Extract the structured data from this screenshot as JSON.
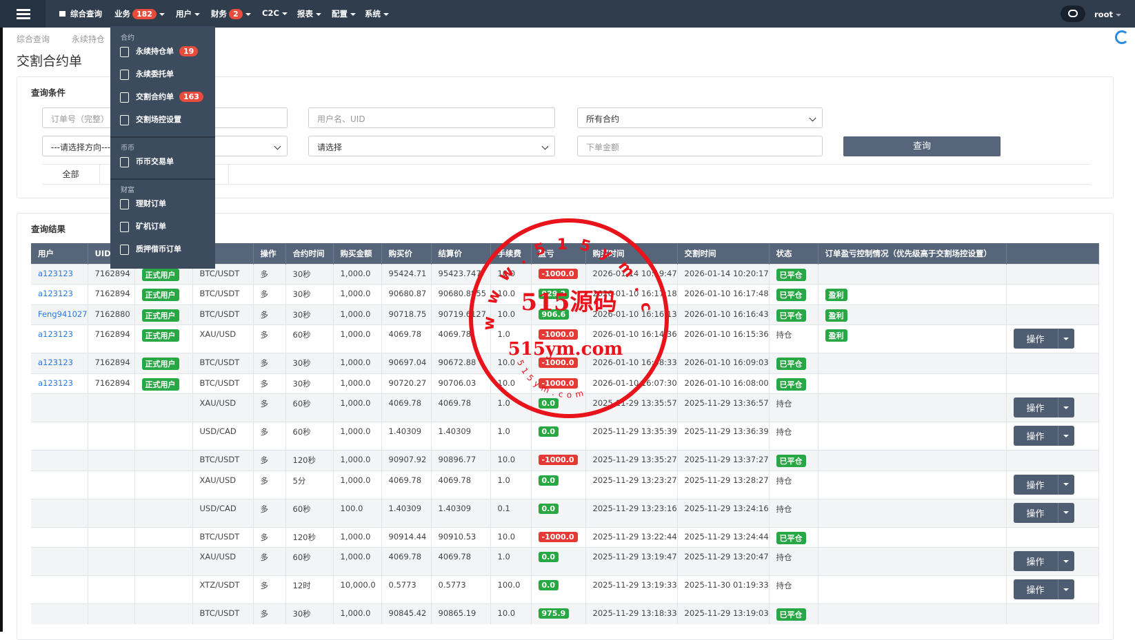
{
  "nav": {
    "items": [
      {
        "label": "综合查询"
      },
      {
        "label": "业务",
        "badge": "182"
      },
      {
        "label": "用户"
      },
      {
        "label": "财务",
        "badge": "2"
      },
      {
        "label": "C2C"
      },
      {
        "label": "报表"
      },
      {
        "label": "配置"
      },
      {
        "label": "系统"
      }
    ],
    "user": "root"
  },
  "dropdown": [
    {
      "section": "合约",
      "items": [
        {
          "label": "永续持仓单",
          "badge": "19"
        },
        {
          "label": "永续委托单"
        },
        {
          "label": "交割合约单",
          "badge": "163"
        },
        {
          "label": "交割场控设置"
        }
      ]
    },
    {
      "section": "币币",
      "items": [
        {
          "label": "币币交易单"
        }
      ]
    },
    {
      "section": "财富",
      "items": [
        {
          "label": "理财订单"
        },
        {
          "label": "矿机订单"
        },
        {
          "label": "质押借币订单"
        }
      ]
    }
  ],
  "breadcrumb": [
    "综合查询",
    "永续持仓"
  ],
  "page_title": "交割合约单",
  "query": {
    "title": "查询条件",
    "fields": [
      "订单号（完整）",
      "用户名、UID",
      "所有合约",
      "---请选择方向---",
      "请选择",
      "下单金额"
    ],
    "button": "查询",
    "tab": "全部"
  },
  "results": {
    "title": "查询结果",
    "headers": [
      "用户",
      "UID",
      null,
      null,
      "操作",
      "合约时间",
      "购买金额",
      "购买价",
      "结算价",
      "手续费",
      "盈亏",
      "购买时间",
      "交割时间",
      "状态",
      "订单盈亏控制情况（优先级高于交割场控设置）",
      null
    ],
    "rows": [
      [
        "a123123",
        "7162894",
        "正式用户",
        "BTC/USDT",
        "多",
        "30秒",
        "1,000.0",
        "95424.71",
        "95423.747",
        "10.0",
        "-1000.0",
        "2026-01-14 10:19:47",
        "2026-01-14 10:20:17",
        "已平仓",
        null,
        null
      ],
      [
        "a123123",
        "7162894",
        "正式用户",
        "BTC/USDT",
        "多",
        "30秒",
        "1,000.0",
        "90680.87",
        "90680.8855",
        "10.0",
        "929.2",
        "2026-01-10 16:17:18",
        "2026-01-10 16:17:48",
        "已平仓",
        "盈利",
        null
      ],
      [
        "Feng941027",
        "7162880",
        "正式用户",
        "BTC/USDT",
        "多",
        "30秒",
        "1,000.0",
        "90718.75",
        "90719.6127",
        "10.0",
        "906.6",
        "2026-01-10 16:16:13",
        "2026-01-10 16:16:43",
        "已平仓",
        "盈利",
        null
      ],
      [
        "a123123",
        "7162894",
        "正式用户",
        "XAU/USD",
        "多",
        "60秒",
        "1,000.0",
        "4069.78",
        "4069.78",
        "1.0",
        "-1000.0",
        "2026-01-10 16:14:36",
        "2026-01-10 16:15:36",
        "持仓",
        "盈利",
        "操作"
      ],
      [
        "a123123",
        "7162894",
        "正式用户",
        "BTC/USDT",
        "多",
        "30秒",
        "1,000.0",
        "90697.04",
        "90672.88",
        "10.0",
        "-1000.0",
        "2026-01-10 16:08:33",
        "2026-01-10 16:09:03",
        "已平仓",
        null,
        null
      ],
      [
        "a123123",
        "7162894",
        "正式用户",
        "BTC/USDT",
        "多",
        "30秒",
        "1,000.0",
        "90720.27",
        "90706.03",
        "10.0",
        "-1000.0",
        "2026-01-10 16:07:30",
        "2026-01-10 16:08:00",
        "已平仓",
        null,
        null
      ],
      [
        null,
        null,
        null,
        "XAU/USD",
        "多",
        "60秒",
        "1,000.0",
        "4069.78",
        "4069.78",
        "1.0",
        "0.0",
        "2025-11-29 13:35:57",
        "2025-11-29 13:36:57",
        "持仓",
        null,
        "操作"
      ],
      [
        null,
        null,
        null,
        "USD/CAD",
        "多",
        "60秒",
        "1,000.0",
        "1.40309",
        "1.40309",
        "1.0",
        "0.0",
        "2025-11-29 13:35:39",
        "2025-11-29 13:36:39",
        "持仓",
        null,
        "操作"
      ],
      [
        null,
        null,
        null,
        "BTC/USDT",
        "多",
        "120秒",
        "1,000.0",
        "90907.92",
        "90896.77",
        "10.0",
        "-1000.0",
        "2025-11-29 13:35:27",
        "2025-11-29 13:37:27",
        "已平仓",
        null,
        null
      ],
      [
        null,
        null,
        null,
        "XAU/USD",
        "多",
        "5分",
        "1,000.0",
        "4069.78",
        "4069.78",
        "1.0",
        "0.0",
        "2025-11-29 13:23:27",
        "2025-11-29 13:28:27",
        "持仓",
        null,
        "操作"
      ],
      [
        null,
        null,
        null,
        "USD/CAD",
        "多",
        "60秒",
        "100.0",
        "1.40309",
        "1.40309",
        "0.1",
        "0.0",
        "2025-11-29 13:23:16",
        "2025-11-29 13:24:16",
        "持仓",
        null,
        "操作"
      ],
      [
        null,
        null,
        null,
        "BTC/USDT",
        "多",
        "120秒",
        "1,000.0",
        "90914.44",
        "90910.53",
        "10.0",
        "-1000.0",
        "2025-11-29 13:22:44",
        "2025-11-29 13:24:44",
        "已平仓",
        null,
        null
      ],
      [
        null,
        null,
        null,
        "XAU/USD",
        "多",
        "60秒",
        "1,000.0",
        "4069.78",
        "4069.78",
        "1.0",
        "0.0",
        "2025-11-29 13:19:47",
        "2025-11-29 13:20:47",
        "持仓",
        null,
        "操作"
      ],
      [
        null,
        null,
        null,
        "XTZ/USDT",
        "多",
        "12时",
        "10,000.0",
        "0.5773",
        "0.5773",
        "100.0",
        "0.0",
        "2025-11-29 13:19:33",
        "2025-11-30 01:19:33",
        "持仓",
        null,
        "操作"
      ],
      [
        null,
        null,
        null,
        "BTC/USDT",
        "多",
        "30秒",
        "1,000.0",
        "90845.42",
        "90865.19",
        "10.0",
        "975.9",
        "2025-11-29 13:18:33",
        "2025-11-29 13:19:03",
        "已平仓",
        null,
        null
      ]
    ]
  },
  "stamp": {
    "center": "515源码",
    "url": "515ym.com",
    "ring": "www.515ym.com",
    "inner": "515ym.com"
  }
}
